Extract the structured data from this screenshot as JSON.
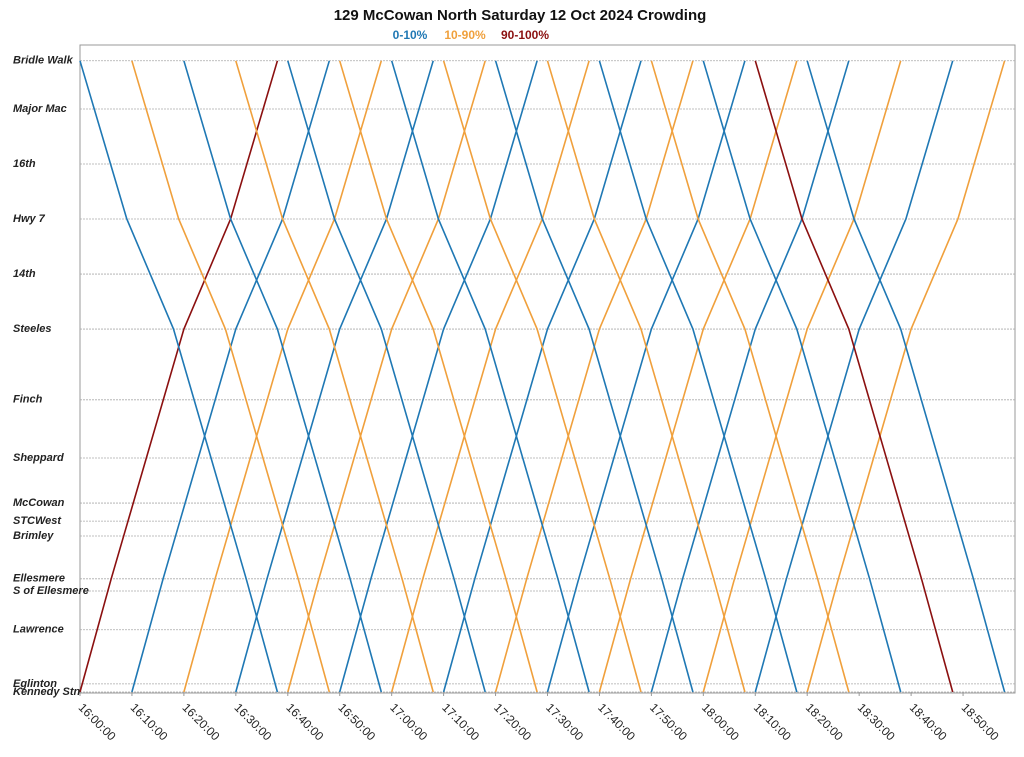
{
  "chart_data": {
    "type": "stringline",
    "title": "129 McCowan North Saturday 12 Oct 2024 Crowding",
    "legend": [
      {
        "label": "0-10%",
        "color": "#1f78b4"
      },
      {
        "label": "10-90%",
        "color": "#f0a03c"
      },
      {
        "label": "90-100%",
        "color": "#8b1010"
      }
    ],
    "xlim": [
      960,
      1140
    ],
    "xticks": [
      {
        "value": 960,
        "label": "16:00:00"
      },
      {
        "value": 970,
        "label": "16:10:00"
      },
      {
        "value": 980,
        "label": "16:20:00"
      },
      {
        "value": 990,
        "label": "16:30:00"
      },
      {
        "value": 1000,
        "label": "16:40:00"
      },
      {
        "value": 1010,
        "label": "16:50:00"
      },
      {
        "value": 1020,
        "label": "17:00:00"
      },
      {
        "value": 1030,
        "label": "17:10:00"
      },
      {
        "value": 1040,
        "label": "17:20:00"
      },
      {
        "value": 1050,
        "label": "17:30:00"
      },
      {
        "value": 1060,
        "label": "17:40:00"
      },
      {
        "value": 1070,
        "label": "17:50:00"
      },
      {
        "value": 1080,
        "label": "18:00:00"
      },
      {
        "value": 1090,
        "label": "18:10:00"
      },
      {
        "value": 1100,
        "label": "18:20:00"
      },
      {
        "value": 1110,
        "label": "18:30:00"
      },
      {
        "value": 1120,
        "label": "18:40:00"
      },
      {
        "value": 1130,
        "label": "18:50:00"
      }
    ],
    "ylim": [
      0,
      14.35
    ],
    "yticks": [
      {
        "value": 14,
        "label": "Bridle Walk"
      },
      {
        "value": 12.93,
        "label": "Major Mac"
      },
      {
        "value": 11.71,
        "label": "16th"
      },
      {
        "value": 10.49,
        "label": "Hwy 7"
      },
      {
        "value": 9.27,
        "label": "14th"
      },
      {
        "value": 8.05,
        "label": "Steeles"
      },
      {
        "value": 6.48,
        "label": "Finch"
      },
      {
        "value": 5.19,
        "label": "Sheppard"
      },
      {
        "value": 4.19,
        "label": "McCowan"
      },
      {
        "value": 3.79,
        "label": "STCWest"
      },
      {
        "value": 3.46,
        "label": "Brimley"
      },
      {
        "value": 2.51,
        "label": "Ellesmere"
      },
      {
        "value": 2.24,
        "label": "S of Ellesmere"
      },
      {
        "value": 1.38,
        "label": "Lawrence"
      },
      {
        "value": 0.18,
        "label": "Eglinton"
      },
      {
        "value": 0,
        "label": "Kennedy Stn"
      }
    ],
    "grid": true,
    "trips": [
      {
        "color": "#8b1010",
        "x": [
          960,
          966,
          980,
          989,
          998
        ],
        "y": [
          0,
          2.51,
          8.05,
          10.49,
          14
        ]
      },
      {
        "color": "#1f78b4",
        "x": [
          970,
          976,
          990,
          999,
          1008
        ],
        "y": [
          0,
          2.51,
          8.05,
          10.49,
          14
        ]
      },
      {
        "color": "#f0a03c",
        "x": [
          980,
          986,
          1000,
          1009,
          1018
        ],
        "y": [
          0,
          2.51,
          8.05,
          10.49,
          14
        ]
      },
      {
        "color": "#1f78b4",
        "x": [
          990,
          996,
          1010,
          1019,
          1028
        ],
        "y": [
          0,
          2.51,
          8.05,
          10.49,
          14
        ]
      },
      {
        "color": "#f0a03c",
        "x": [
          1000,
          1006,
          1020,
          1029,
          1038
        ],
        "y": [
          0,
          2.51,
          8.05,
          10.49,
          14
        ]
      },
      {
        "color": "#1f78b4",
        "x": [
          1010,
          1016,
          1030,
          1039,
          1048
        ],
        "y": [
          0,
          2.51,
          8.05,
          10.49,
          14
        ]
      },
      {
        "color": "#f0a03c",
        "x": [
          1020,
          1026,
          1040,
          1049,
          1058
        ],
        "y": [
          0,
          2.51,
          8.05,
          10.49,
          14
        ]
      },
      {
        "color": "#1f78b4",
        "x": [
          1030,
          1036,
          1050,
          1059,
          1068
        ],
        "y": [
          0,
          2.51,
          8.05,
          10.49,
          14
        ]
      },
      {
        "color": "#f0a03c",
        "x": [
          1040,
          1046,
          1060,
          1069,
          1078
        ],
        "y": [
          0,
          2.51,
          8.05,
          10.49,
          14
        ]
      },
      {
        "color": "#1f78b4",
        "x": [
          1050,
          1056,
          1070,
          1079,
          1088
        ],
        "y": [
          0,
          2.51,
          8.05,
          10.49,
          14
        ]
      },
      {
        "color": "#f0a03c",
        "x": [
          1060,
          1066,
          1080,
          1089,
          1098
        ],
        "y": [
          0,
          2.51,
          8.05,
          10.49,
          14
        ]
      },
      {
        "color": "#1f78b4",
        "x": [
          1070,
          1076,
          1090,
          1099,
          1108
        ],
        "y": [
          0,
          2.51,
          8.05,
          10.49,
          14
        ]
      },
      {
        "color": "#f0a03c",
        "x": [
          1080,
          1086,
          1100,
          1109,
          1118
        ],
        "y": [
          0,
          2.51,
          8.05,
          10.49,
          14
        ]
      },
      {
        "color": "#1f78b4",
        "x": [
          1090,
          1096,
          1110,
          1119,
          1128
        ],
        "y": [
          0,
          2.51,
          8.05,
          10.49,
          14
        ]
      },
      {
        "color": "#f0a03c",
        "x": [
          1100,
          1106,
          1120,
          1129,
          1138
        ],
        "y": [
          0,
          2.51,
          8.05,
          10.49,
          14
        ]
      },
      {
        "color": "#1f78b4",
        "x": [
          960,
          969,
          978,
          992,
          998
        ],
        "y": [
          14,
          10.49,
          8.05,
          2.51,
          0
        ]
      },
      {
        "color": "#f0a03c",
        "x": [
          970,
          979,
          988,
          1002,
          1008
        ],
        "y": [
          14,
          10.49,
          8.05,
          2.51,
          0
        ]
      },
      {
        "color": "#1f78b4",
        "x": [
          980,
          989,
          998,
          1012,
          1018
        ],
        "y": [
          14,
          10.49,
          8.05,
          2.51,
          0
        ]
      },
      {
        "color": "#f0a03c",
        "x": [
          990,
          999,
          1008,
          1022,
          1028
        ],
        "y": [
          14,
          10.49,
          8.05,
          2.51,
          0
        ]
      },
      {
        "color": "#1f78b4",
        "x": [
          1000,
          1009,
          1018,
          1032,
          1038
        ],
        "y": [
          14,
          10.49,
          8.05,
          2.51,
          0
        ]
      },
      {
        "color": "#f0a03c",
        "x": [
          1010,
          1019,
          1028,
          1042,
          1048
        ],
        "y": [
          14,
          10.49,
          8.05,
          2.51,
          0
        ]
      },
      {
        "color": "#1f78b4",
        "x": [
          1020,
          1029,
          1038,
          1052,
          1058
        ],
        "y": [
          14,
          10.49,
          8.05,
          2.51,
          0
        ]
      },
      {
        "color": "#f0a03c",
        "x": [
          1030,
          1039,
          1048,
          1062,
          1068
        ],
        "y": [
          14,
          10.49,
          8.05,
          2.51,
          0
        ]
      },
      {
        "color": "#1f78b4",
        "x": [
          1040,
          1049,
          1058,
          1072,
          1078
        ],
        "y": [
          14,
          10.49,
          8.05,
          2.51,
          0
        ]
      },
      {
        "color": "#f0a03c",
        "x": [
          1050,
          1059,
          1068,
          1082,
          1088
        ],
        "y": [
          14,
          10.49,
          8.05,
          2.51,
          0
        ]
      },
      {
        "color": "#1f78b4",
        "x": [
          1060,
          1069,
          1078,
          1092,
          1098
        ],
        "y": [
          14,
          10.49,
          8.05,
          2.51,
          0
        ]
      },
      {
        "color": "#f0a03c",
        "x": [
          1070,
          1079,
          1088,
          1102,
          1108
        ],
        "y": [
          14,
          10.49,
          8.05,
          2.51,
          0
        ]
      },
      {
        "color": "#1f78b4",
        "x": [
          1080,
          1089,
          1098,
          1112,
          1118
        ],
        "y": [
          14,
          10.49,
          8.05,
          2.51,
          0
        ]
      },
      {
        "color": "#8b1010",
        "x": [
          1090,
          1099,
          1108,
          1122,
          1128
        ],
        "y": [
          14,
          10.49,
          8.05,
          2.51,
          0
        ]
      },
      {
        "color": "#1f78b4",
        "x": [
          1100,
          1109,
          1118,
          1132,
          1138
        ],
        "y": [
          14,
          10.49,
          8.05,
          2.51,
          0
        ]
      }
    ]
  }
}
